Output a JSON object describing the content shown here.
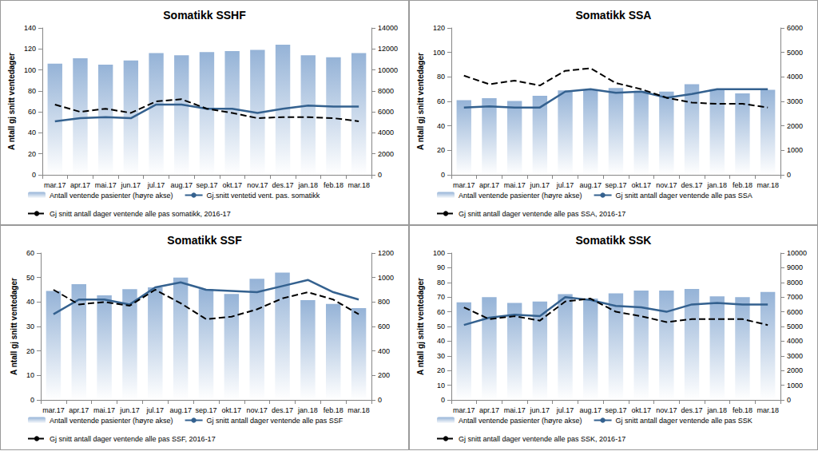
{
  "chart_data": [
    {
      "type": "bar",
      "title": "Somatikk SSHF",
      "ylabel": "A ntall gj snitt ventedager",
      "categories": [
        "mar.17",
        "apr.17",
        "mai.17",
        "jun.17",
        "jul.17",
        "aug.17",
        "sep.17",
        "okt.17",
        "nov.17",
        "des.17",
        "jan.18",
        "feb.18",
        "mar.18"
      ],
      "ylim": [
        0,
        140
      ],
      "yticks": [
        0,
        20,
        40,
        60,
        80,
        100,
        120,
        140
      ],
      "y2lim": [
        0,
        14000
      ],
      "y2ticks": [
        0,
        2000,
        4000,
        6000,
        8000,
        10000,
        12000,
        14000
      ],
      "grid": false,
      "legend": "bottom",
      "series": [
        {
          "name": "Antall ventende pasienter (høyre akse)",
          "type": "bar",
          "axis": "y2",
          "color": "#95b3d7",
          "values": [
            10600,
            11100,
            10500,
            10900,
            11600,
            11400,
            11700,
            11800,
            11900,
            12400,
            11400,
            11200,
            11600
          ]
        },
        {
          "name": "Gj.snitt ventetid vent. pas. somatikk",
          "type": "line",
          "color": "#34618f",
          "line_style": "solid",
          "marker": "none",
          "values": [
            51,
            54,
            55,
            54,
            67,
            67,
            63,
            63,
            59,
            63,
            66,
            65,
            65
          ]
        },
        {
          "name": "Gj snitt antall dager ventende alle pas somatikk, 2016-17",
          "type": "line",
          "color": "#000000",
          "line_style": "dashed",
          "marker": "none",
          "values": [
            67,
            60,
            63,
            59,
            70,
            72,
            63,
            59,
            54,
            55,
            55,
            54,
            51
          ]
        }
      ]
    },
    {
      "type": "bar",
      "title": "Somatikk SSA",
      "ylabel": "A ntall gj snitt ventedager",
      "categories": [
        "mar.17",
        "apr.17",
        "mai.17",
        "jun.17",
        "jul.17",
        "aug.17",
        "sep.17",
        "okt.17",
        "nov.17",
        "des.17",
        "jan.18",
        "feb.18",
        "mar.18"
      ],
      "ylim": [
        0,
        120
      ],
      "yticks": [
        0,
        20,
        40,
        60,
        80,
        100,
        120
      ],
      "y2lim": [
        0,
        6000
      ],
      "y2ticks": [
        0,
        1000,
        2000,
        3000,
        4000,
        5000,
        6000
      ],
      "grid": false,
      "legend": "bottom",
      "series": [
        {
          "name": "Antall ventende pasienter (høyre akse)",
          "type": "bar",
          "axis": "y2",
          "color": "#95b3d7",
          "values": [
            3050,
            3130,
            3020,
            3230,
            3450,
            3470,
            3550,
            3430,
            3400,
            3700,
            3500,
            3330,
            3470
          ]
        },
        {
          "name": "Gj snitt antall dager ventende alle pas SSA",
          "type": "line",
          "color": "#34618f",
          "line_style": "solid",
          "marker": "none",
          "values": [
            55,
            56,
            55,
            55,
            68,
            70,
            67,
            68,
            63,
            66,
            70,
            70,
            70
          ]
        },
        {
          "name": "Gj snitt antall dager ventende alle pas SSA, 2016-17",
          "type": "line",
          "color": "#000000",
          "line_style": "dashed",
          "marker": "none",
          "values": [
            81,
            74,
            77,
            73,
            85,
            87,
            75,
            70,
            63,
            59,
            58,
            58,
            55
          ]
        }
      ]
    },
    {
      "type": "bar",
      "title": "Somatikk SSF",
      "ylabel": "A ntall gj snitt ventedager",
      "categories": [
        "mar.17",
        "apr.17",
        "mai.17",
        "jun.17",
        "jul.17",
        "aug.17",
        "sep.17",
        "okt.17",
        "nov.17",
        "des.17",
        "jan.18",
        "feb.18",
        "mar.18"
      ],
      "ylim": [
        0,
        60
      ],
      "yticks": [
        0,
        10,
        20,
        30,
        40,
        50,
        60
      ],
      "y2lim": [
        0,
        1200
      ],
      "y2ticks": [
        0,
        200,
        400,
        600,
        800,
        1000,
        1200
      ],
      "grid": false,
      "legend": "bottom",
      "series": [
        {
          "name": "Antall ventende pasienter (høyre akse)",
          "type": "bar",
          "axis": "y2",
          "color": "#95b3d7",
          "values": [
            890,
            945,
            855,
            905,
            920,
            1000,
            905,
            865,
            990,
            1040,
            815,
            785,
            750
          ]
        },
        {
          "name": "Gj snitt antall dager ventende alle pas SSF",
          "type": "line",
          "color": "#34618f",
          "line_style": "solid",
          "marker": "none",
          "values": [
            35,
            41,
            41,
            39,
            46,
            48,
            45,
            44.5,
            44,
            46.5,
            49,
            44,
            41
          ]
        },
        {
          "name": "Gj snitt antall dager ventende alle pas SSF, 2016-17",
          "type": "line",
          "color": "#000000",
          "line_style": "dashed",
          "marker": "none",
          "values": [
            45,
            39,
            40,
            38.5,
            45,
            39.5,
            33,
            34,
            37,
            41.5,
            44,
            41,
            35
          ]
        }
      ]
    },
    {
      "type": "bar",
      "title": "Somatikk SSK",
      "ylabel": "A ntall gj snitt ventedager",
      "categories": [
        "mar.17",
        "apr.17",
        "mai.17",
        "jun.17",
        "jul.17",
        "aug.17",
        "sep.17",
        "okt.17",
        "nov.17",
        "des.17",
        "jan.18",
        "feb.18",
        "mar.18"
      ],
      "ylim": [
        0,
        100
      ],
      "yticks": [
        0,
        10,
        20,
        30,
        40,
        50,
        60,
        70,
        80,
        90,
        100
      ],
      "y2lim": [
        0,
        10000
      ],
      "y2ticks": [
        0,
        1000,
        2000,
        3000,
        4000,
        5000,
        6000,
        7000,
        8000,
        9000,
        10000
      ],
      "grid": false,
      "legend": "bottom",
      "series": [
        {
          "name": "Antall ventende pasienter (høyre akse)",
          "type": "bar",
          "axis": "y2",
          "color": "#95b3d7",
          "values": [
            6650,
            7000,
            6600,
            6700,
            7200,
            6900,
            7250,
            7450,
            7450,
            7550,
            7050,
            7000,
            7350
          ]
        },
        {
          "name": "Gj snitt antall dager ventende alle pas SSK",
          "type": "line",
          "color": "#34618f",
          "line_style": "solid",
          "marker": "none",
          "values": [
            51,
            56,
            58,
            57,
            70,
            68,
            64,
            63,
            60,
            65,
            66,
            65,
            65
          ]
        },
        {
          "name": "Gj snitt antall dager ventende alle pas SSK, 2016-17",
          "type": "line",
          "color": "#000000",
          "line_style": "dashed",
          "marker": "none",
          "values": [
            63,
            55,
            57,
            54,
            67,
            69,
            60,
            57,
            53,
            55,
            55,
            55,
            51
          ]
        }
      ]
    }
  ]
}
